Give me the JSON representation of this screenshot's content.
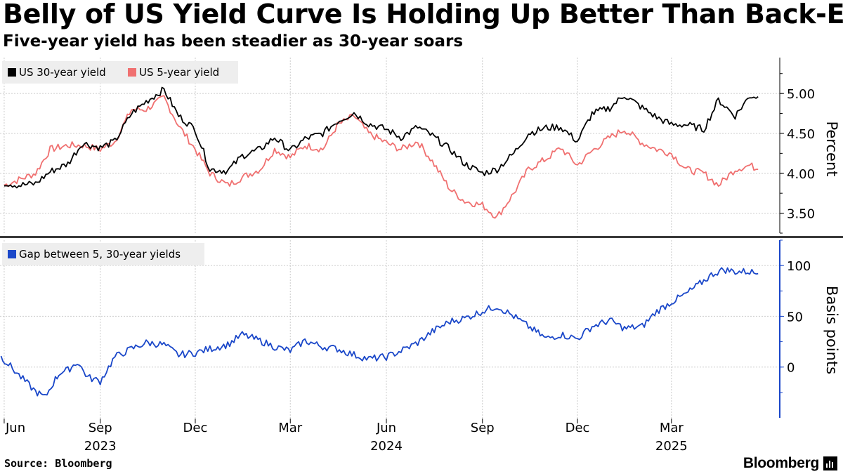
{
  "header": {
    "title": "Belly of US Yield Curve Is Holding Up Better Than Back-End",
    "subtitle": "Five-year yield has been steadier as 30-year soars"
  },
  "footer": {
    "source": "Source: Bloomberg",
    "brand": "Bloomberg"
  },
  "colors": {
    "us30": "#000000",
    "us5": "#f07070",
    "gap": "#1a47c9",
    "grid": "#cccccc"
  },
  "chart_data": [
    {
      "type": "line",
      "panel": "top",
      "ylabel": "Percent",
      "ylim": [
        3.25,
        5.45
      ],
      "yticks": [
        3.5,
        4.0,
        4.5,
        5.0
      ],
      "ytick_labels": [
        "3.50",
        "4.00",
        "4.50",
        "5.00"
      ],
      "legend": "top-left",
      "x": [
        "2023-06-01",
        "2023-06-15",
        "2023-07-01",
        "2023-07-15",
        "2023-08-01",
        "2023-08-15",
        "2023-09-01",
        "2023-09-15",
        "2023-10-01",
        "2023-10-15",
        "2023-11-01",
        "2023-11-15",
        "2023-12-01",
        "2023-12-15",
        "2024-01-01",
        "2024-01-15",
        "2024-02-01",
        "2024-02-15",
        "2024-03-01",
        "2024-03-15",
        "2024-04-01",
        "2024-04-15",
        "2024-05-01",
        "2024-05-15",
        "2024-06-01",
        "2024-06-15",
        "2024-07-01",
        "2024-07-15",
        "2024-08-01",
        "2024-08-15",
        "2024-09-01",
        "2024-09-15",
        "2024-10-01",
        "2024-10-15",
        "2024-11-01",
        "2024-11-15",
        "2024-12-01",
        "2024-12-15",
        "2025-01-01",
        "2025-01-15",
        "2025-02-01",
        "2025-02-15",
        "2025-03-01",
        "2025-03-15",
        "2025-04-01",
        "2025-04-15",
        "2025-05-01",
        "2025-05-15",
        "2025-05-23"
      ],
      "series": [
        {
          "name": "US 30-year yield",
          "values": [
            3.88,
            3.85,
            3.87,
            4.02,
            4.12,
            4.38,
            4.32,
            4.4,
            4.75,
            4.9,
            5.05,
            4.72,
            4.55,
            4.05,
            4.03,
            4.22,
            4.3,
            4.45,
            4.28,
            4.43,
            4.5,
            4.65,
            4.76,
            4.62,
            4.55,
            4.45,
            4.58,
            4.47,
            4.3,
            4.12,
            4.0,
            4.05,
            4.25,
            4.5,
            4.57,
            4.58,
            4.4,
            4.75,
            4.82,
            4.98,
            4.82,
            4.7,
            4.61,
            4.61,
            4.55,
            4.92,
            4.72,
            4.97,
            4.96
          ]
        },
        {
          "name": "US 5-year yield",
          "values": [
            3.85,
            3.92,
            4.0,
            4.3,
            4.35,
            4.35,
            4.3,
            4.4,
            4.8,
            4.8,
            4.95,
            4.6,
            4.3,
            4.0,
            3.85,
            3.95,
            4.05,
            4.3,
            4.2,
            4.35,
            4.3,
            4.6,
            4.72,
            4.5,
            4.38,
            4.3,
            4.4,
            4.15,
            3.8,
            3.65,
            3.6,
            3.45,
            3.75,
            4.05,
            4.18,
            4.32,
            4.1,
            4.28,
            4.45,
            4.55,
            4.38,
            4.3,
            4.25,
            4.05,
            4.0,
            3.85,
            4.05,
            4.1,
            4.05
          ]
        }
      ]
    },
    {
      "type": "line",
      "panel": "bottom",
      "ylabel": "Basis points",
      "ylim": [
        -50,
        125
      ],
      "yticks": [
        0,
        50,
        100
      ],
      "ytick_labels": [
        "0",
        "50",
        "100"
      ],
      "legend": "top-left",
      "x_tick_labels": [
        "Jun",
        "Sep",
        "Dec",
        "Mar",
        "Jun",
        "Sep",
        "Dec",
        "Mar"
      ],
      "x_tick_dates": [
        "2023-06-01",
        "2023-09-01",
        "2023-12-01",
        "2024-03-01",
        "2024-06-01",
        "2024-09-01",
        "2024-12-01",
        "2025-03-01"
      ],
      "year_labels": [
        "2023",
        "2024",
        "2025"
      ],
      "year_label_dates": [
        "2023-09-01",
        "2024-06-01",
        "2025-03-01"
      ],
      "x_start": "2023-05-28",
      "x_end": "2025-06-06",
      "x": [
        "2023-05-29",
        "2023-06-05",
        "2023-06-15",
        "2023-06-25",
        "2023-07-01",
        "2023-07-10",
        "2023-07-20",
        "2023-07-25",
        "2023-08-01",
        "2023-08-10",
        "2023-08-20",
        "2023-09-01",
        "2023-09-15",
        "2023-10-01",
        "2023-10-15",
        "2023-11-01",
        "2023-11-15",
        "2023-12-01",
        "2023-12-15",
        "2024-01-01",
        "2024-01-15",
        "2024-02-01",
        "2024-02-15",
        "2024-03-01",
        "2024-03-15",
        "2024-04-01",
        "2024-04-15",
        "2024-05-01",
        "2024-05-15",
        "2024-06-01",
        "2024-06-15",
        "2024-07-01",
        "2024-07-15",
        "2024-08-01",
        "2024-08-15",
        "2024-09-01",
        "2024-09-15",
        "2024-10-01",
        "2024-10-15",
        "2024-11-01",
        "2024-11-15",
        "2024-12-01",
        "2024-12-15",
        "2025-01-01",
        "2025-01-15",
        "2025-02-01",
        "2025-02-15",
        "2025-03-01",
        "2025-03-15",
        "2025-04-01",
        "2025-04-10",
        "2025-04-20",
        "2025-05-01",
        "2025-05-15",
        "2025-05-23"
      ],
      "series": [
        {
          "name": "Gap between 5, 30-year yields",
          "values": [
            10,
            3,
            -8,
            -18,
            -24,
            -30,
            -12,
            -5,
            -3,
            5,
            -10,
            -14,
            10,
            18,
            24,
            22,
            12,
            14,
            18,
            22,
            32,
            26,
            20,
            16,
            26,
            20,
            18,
            12,
            8,
            10,
            16,
            24,
            35,
            45,
            48,
            55,
            60,
            50,
            40,
            28,
            32,
            28,
            40,
            46,
            38,
            40,
            55,
            64,
            72,
            85,
            92,
            96,
            94,
            94,
            92
          ]
        }
      ]
    }
  ]
}
